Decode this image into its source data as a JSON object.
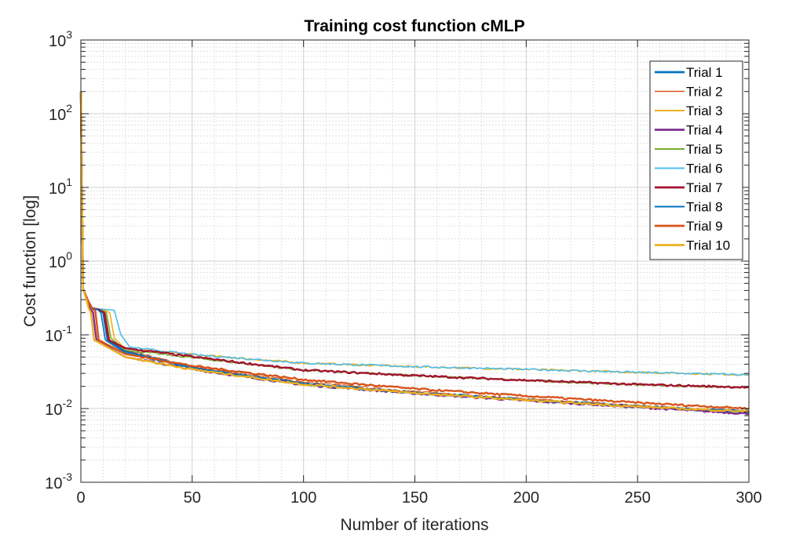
{
  "chart_data": {
    "type": "line",
    "title": "Training cost function cMLP",
    "xlabel": "Number of iterations",
    "ylabel": "Cost function [log]",
    "xlim": [
      0,
      300
    ],
    "ylim": [
      0.001,
      1000
    ],
    "yscale": "log",
    "grid": true,
    "minor_grid": true,
    "legend_position": "top-right",
    "x_ticks": [
      "0",
      "50",
      "100",
      "150",
      "200",
      "250",
      "300"
    ],
    "x_tick_values": [
      0,
      50,
      100,
      150,
      200,
      250,
      300
    ],
    "y_ticks": [
      {
        "base": "10",
        "exp": "3",
        "value": 1000
      },
      {
        "base": "10",
        "exp": "2",
        "value": 100
      },
      {
        "base": "10",
        "exp": "1",
        "value": 10
      },
      {
        "base": "10",
        "exp": "0",
        "value": 1
      },
      {
        "base": "10",
        "exp": "-1",
        "value": 0.1
      },
      {
        "base": "10",
        "exp": "-2",
        "value": 0.01
      },
      {
        "base": "10",
        "exp": "-3",
        "value": 0.001
      }
    ],
    "series": [
      {
        "name": "Trial 1",
        "color": "#0072BD",
        "width": 2.4,
        "points": [
          [
            0,
            200
          ],
          [
            1,
            0.42
          ],
          [
            3,
            0.3
          ],
          [
            5,
            0.23
          ],
          [
            8,
            0.22
          ],
          [
            10,
            0.2
          ],
          [
            12,
            0.085
          ],
          [
            20,
            0.06
          ],
          [
            50,
            0.036
          ],
          [
            100,
            0.022
          ],
          [
            150,
            0.0165
          ],
          [
            200,
            0.0132
          ],
          [
            250,
            0.0108
          ],
          [
            300,
            0.0088
          ]
        ]
      },
      {
        "name": "Trial 2",
        "color": "#D95319",
        "width": 1.0,
        "points": [
          [
            0,
            200
          ],
          [
            1,
            0.42
          ],
          [
            3,
            0.3
          ],
          [
            5,
            0.23
          ],
          [
            9,
            0.22
          ],
          [
            11,
            0.2
          ],
          [
            13,
            0.085
          ],
          [
            20,
            0.062
          ],
          [
            50,
            0.037
          ],
          [
            100,
            0.023
          ],
          [
            150,
            0.017
          ],
          [
            200,
            0.0135
          ],
          [
            250,
            0.011
          ],
          [
            300,
            0.0092
          ]
        ]
      },
      {
        "name": "Trial 3",
        "color": "#EDB120",
        "width": 1.6,
        "points": [
          [
            0,
            200
          ],
          [
            1,
            0.42
          ],
          [
            3,
            0.3
          ],
          [
            5,
            0.23
          ],
          [
            10,
            0.22
          ],
          [
            13,
            0.2
          ],
          [
            15,
            0.09
          ],
          [
            20,
            0.065
          ],
          [
            50,
            0.054
          ],
          [
            100,
            0.0414
          ],
          [
            150,
            0.037
          ],
          [
            200,
            0.034
          ],
          [
            250,
            0.031
          ],
          [
            300,
            0.0287
          ]
        ]
      },
      {
        "name": "Trial 4",
        "color": "#7E2F8E",
        "width": 2.4,
        "points": [
          [
            0,
            200
          ],
          [
            1,
            0.42
          ],
          [
            3,
            0.3
          ],
          [
            4,
            0.23
          ],
          [
            5.5,
            0.2
          ],
          [
            7,
            0.085
          ],
          [
            20,
            0.05
          ],
          [
            50,
            0.034
          ],
          [
            100,
            0.021
          ],
          [
            150,
            0.016
          ],
          [
            200,
            0.0128
          ],
          [
            250,
            0.0104
          ],
          [
            300,
            0.0085
          ]
        ]
      },
      {
        "name": "Trial 5",
        "color": "#77AC30",
        "width": 1.6,
        "points": [
          [
            0,
            200
          ],
          [
            1,
            0.42
          ],
          [
            3,
            0.3
          ],
          [
            5,
            0.23
          ],
          [
            9,
            0.22
          ],
          [
            11.5,
            0.2
          ],
          [
            13.5,
            0.09
          ],
          [
            20,
            0.062
          ],
          [
            50,
            0.049
          ],
          [
            100,
            0.033
          ],
          [
            150,
            0.028
          ],
          [
            200,
            0.024
          ],
          [
            250,
            0.021
          ],
          [
            300,
            0.0192
          ]
        ]
      },
      {
        "name": "Trial 6",
        "color": "#4DBEEE",
        "width": 1.6,
        "points": [
          [
            0,
            200
          ],
          [
            1,
            0.42
          ],
          [
            3,
            0.3
          ],
          [
            5,
            0.23
          ],
          [
            12,
            0.22
          ],
          [
            15,
            0.215
          ],
          [
            18,
            0.1
          ],
          [
            22,
            0.068
          ],
          [
            50,
            0.054
          ],
          [
            100,
            0.0414
          ],
          [
            150,
            0.037
          ],
          [
            200,
            0.034
          ],
          [
            250,
            0.031
          ],
          [
            300,
            0.0287
          ]
        ]
      },
      {
        "name": "Trial 7",
        "color": "#A2142F",
        "width": 2.4,
        "points": [
          [
            0,
            200
          ],
          [
            1,
            0.42
          ],
          [
            3,
            0.3
          ],
          [
            5,
            0.23
          ],
          [
            8,
            0.22
          ],
          [
            10.5,
            0.2
          ],
          [
            12.5,
            0.085
          ],
          [
            20,
            0.066
          ],
          [
            50,
            0.0505
          ],
          [
            100,
            0.0332
          ],
          [
            150,
            0.028
          ],
          [
            200,
            0.0242
          ],
          [
            250,
            0.0212
          ],
          [
            300,
            0.0194
          ]
        ]
      },
      {
        "name": "Trial 8",
        "color": "#0072BD",
        "width": 1.6,
        "points": [
          [
            0,
            200
          ],
          [
            1,
            0.42
          ],
          [
            3,
            0.3
          ],
          [
            5,
            0.23
          ],
          [
            7.5,
            0.22
          ],
          [
            9,
            0.2
          ],
          [
            11,
            0.085
          ],
          [
            20,
            0.057
          ],
          [
            50,
            0.035
          ],
          [
            100,
            0.0213
          ],
          [
            150,
            0.0162
          ],
          [
            200,
            0.0131
          ],
          [
            250,
            0.0107
          ],
          [
            300,
            0.0093
          ]
        ]
      },
      {
        "name": "Trial 9",
        "color": "#D95319",
        "width": 2.4,
        "points": [
          [
            0,
            200
          ],
          [
            1,
            0.42
          ],
          [
            3,
            0.3
          ],
          [
            5,
            0.23
          ],
          [
            6.5,
            0.21
          ],
          [
            8,
            0.085
          ],
          [
            20,
            0.055
          ],
          [
            50,
            0.038
          ],
          [
            100,
            0.0247
          ],
          [
            150,
            0.0185
          ],
          [
            200,
            0.0148
          ],
          [
            250,
            0.012
          ],
          [
            300,
            0.01
          ]
        ]
      },
      {
        "name": "Trial 10",
        "color": "#EDB120",
        "width": 2.4,
        "points": [
          [
            0,
            200
          ],
          [
            1,
            0.42
          ],
          [
            2.5,
            0.3
          ],
          [
            3.5,
            0.23
          ],
          [
            4.5,
            0.2
          ],
          [
            6,
            0.085
          ],
          [
            20,
            0.05
          ],
          [
            50,
            0.034
          ],
          [
            100,
            0.0213
          ],
          [
            150,
            0.0162
          ],
          [
            200,
            0.013
          ],
          [
            250,
            0.0106
          ],
          [
            300,
            0.0091
          ]
        ]
      }
    ]
  }
}
